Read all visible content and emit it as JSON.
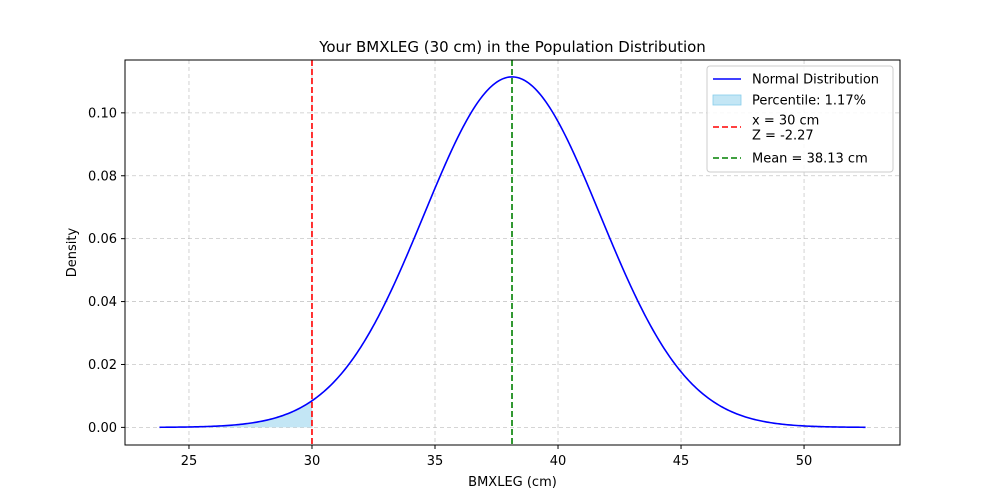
{
  "chart_data": {
    "type": "line",
    "title": "Your BMXLEG (30 cm) in the Population Distribution",
    "xlabel": "BMXLEG (cm)",
    "ylabel": "Density",
    "xlim": [
      22.4,
      53.9
    ],
    "ylim": [
      -0.0056,
      0.1168
    ],
    "x_ticks": [
      25,
      30,
      35,
      40,
      45,
      50
    ],
    "x_tick_labels": [
      "25",
      "30",
      "35",
      "40",
      "45",
      "50"
    ],
    "y_ticks": [
      0.0,
      0.02,
      0.04,
      0.06,
      0.08,
      0.1
    ],
    "y_tick_labels": [
      "0.00",
      "0.02",
      "0.04",
      "0.06",
      "0.08",
      "0.10"
    ],
    "grid": true,
    "legend_position": "top-right",
    "distribution": {
      "mean": 38.13,
      "std": 3.58,
      "x_min": 23.8,
      "x_max": 52.5,
      "peak_density": 0.1114
    },
    "series": [
      {
        "name": "Normal Distribution",
        "kind": "curve",
        "color": "#0000ff",
        "style": "solid"
      },
      {
        "name": "Percentile: 1.17%",
        "kind": "fill",
        "color": "#87ceeb",
        "from": 23.8,
        "to": 30
      },
      {
        "name": "x = 30 cm\nZ = -2.27",
        "kind": "vline",
        "x": 30,
        "color": "#ff0000",
        "style": "dashed"
      },
      {
        "name": "Mean = 38.13 cm",
        "kind": "vline",
        "x": 38.13,
        "color": "#008000",
        "style": "dashed"
      }
    ],
    "legend": [
      {
        "lines": [
          "Normal Distribution"
        ],
        "kind": "line",
        "color": "#0000ff",
        "dashed": false
      },
      {
        "lines": [
          "Percentile: 1.17%"
        ],
        "kind": "patch",
        "color": "#87ceeb",
        "dashed": false
      },
      {
        "lines": [
          "x = 30 cm",
          "Z = -2.27"
        ],
        "kind": "line",
        "color": "#ff0000",
        "dashed": true
      },
      {
        "lines": [
          "Mean = 38.13 cm"
        ],
        "kind": "line",
        "color": "#008000",
        "dashed": true
      }
    ]
  }
}
